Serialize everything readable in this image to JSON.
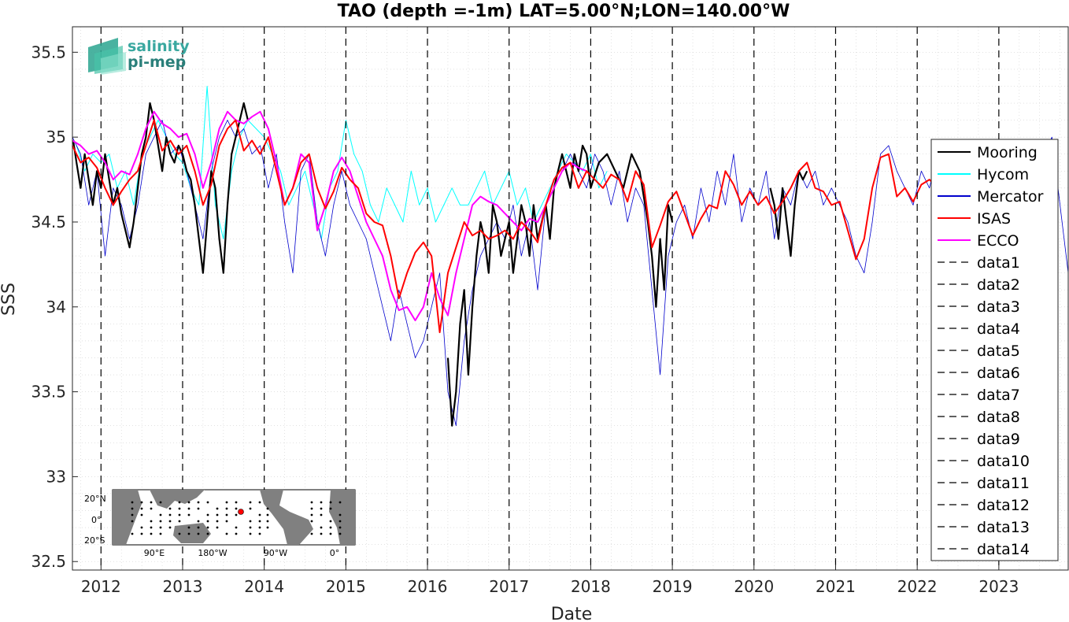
{
  "chart_data": {
    "type": "line",
    "title": "TAO (depth =-1m) LAT=5.00°N;LON=140.00°W",
    "xlabel": "Date",
    "ylabel": "SSS",
    "xlim": [
      2011.65,
      2023.85
    ],
    "ylim": [
      32.45,
      35.65
    ],
    "x_ticks": [
      "2012",
      "2013",
      "2014",
      "2015",
      "2016",
      "2017",
      "2018",
      "2019",
      "2020",
      "2021",
      "2022",
      "2023"
    ],
    "y_ticks": [
      "32.5",
      "33",
      "33.5",
      "34",
      "34.5",
      "35",
      "35.5"
    ],
    "grid": "on (minor dotted)",
    "legend_position": "right",
    "series": [
      {
        "name": "Mooring",
        "color": "#000000",
        "x": [
          2011.66,
          2011.7,
          2011.75,
          2011.8,
          2011.85,
          2011.9,
          2011.95,
          2012.0,
          2012.05,
          2012.1,
          2012.15,
          2012.2,
          2012.25,
          2012.3,
          2012.35,
          2012.4,
          2012.45,
          2012.5,
          2012.55,
          2012.6,
          2012.65,
          2012.7,
          2012.75,
          2012.8,
          2012.85,
          2012.9,
          2012.95,
          2013.0,
          2013.05,
          2013.1,
          2013.15,
          2013.2,
          2013.25,
          2013.3,
          2013.35,
          2013.4,
          2013.45,
          2013.5,
          2013.55,
          2013.6,
          2013.65,
          2013.7,
          2013.75,
          2013.8,
          null,
          2016.25,
          2016.3,
          2016.35,
          2016.4,
          2016.45,
          2016.5,
          2016.55,
          2016.6,
          2016.65,
          2016.7,
          2016.75,
          2016.8,
          2016.85,
          2016.9,
          2016.95,
          2017.0,
          2017.05,
          2017.1,
          2017.15,
          2017.2,
          2017.25,
          2017.3,
          2017.35,
          2017.4,
          2017.45,
          2017.5,
          2017.55,
          2017.6,
          2017.65,
          2017.7,
          2017.75,
          2017.8,
          2017.85,
          2017.9,
          2017.95,
          2018.0,
          2018.1,
          2018.2,
          2018.3,
          2018.4,
          2018.5,
          2018.6,
          2018.7,
          2018.75,
          2018.8,
          2018.85,
          2018.9,
          2018.95,
          2019.0,
          null,
          2020.2,
          2020.25,
          2020.3,
          2020.35,
          2020.4,
          2020.45,
          2020.5,
          2020.55,
          2020.6,
          2020.65
        ],
        "y": [
          34.98,
          34.85,
          34.7,
          34.9,
          34.75,
          34.6,
          34.8,
          34.7,
          34.9,
          34.75,
          34.6,
          34.7,
          34.55,
          34.45,
          34.35,
          34.5,
          34.7,
          34.9,
          35.0,
          35.2,
          35.1,
          34.95,
          34.8,
          35.0,
          34.9,
          34.85,
          34.95,
          34.9,
          34.8,
          34.75,
          34.6,
          34.4,
          34.2,
          34.5,
          34.8,
          34.7,
          34.4,
          34.2,
          34.6,
          34.9,
          35.0,
          35.1,
          35.2,
          35.1,
          null,
          33.7,
          33.3,
          33.5,
          33.9,
          34.1,
          33.6,
          34.0,
          34.3,
          34.5,
          34.4,
          34.2,
          34.6,
          34.5,
          34.3,
          34.4,
          34.5,
          34.2,
          34.4,
          34.6,
          34.5,
          34.3,
          34.6,
          34.4,
          34.5,
          34.6,
          34.4,
          34.7,
          34.8,
          34.9,
          34.8,
          34.7,
          34.9,
          34.8,
          34.95,
          34.9,
          34.7,
          34.85,
          34.9,
          34.8,
          34.7,
          34.9,
          34.8,
          34.5,
          34.3,
          34.0,
          34.4,
          34.1,
          34.6,
          34.5,
          null,
          34.7,
          34.6,
          34.4,
          34.7,
          34.5,
          34.3,
          34.6,
          34.8,
          34.75,
          34.8
        ]
      },
      {
        "name": "Hycom",
        "color": "#00ffff",
        "x": [
          2011.7,
          2011.8,
          2011.9,
          2012.0,
          2012.1,
          2012.2,
          2012.3,
          2012.4,
          2012.5,
          2012.6,
          2012.7,
          2012.8,
          2012.9,
          2013.0,
          2013.1,
          2013.2,
          2013.3,
          2013.4,
          2013.5,
          2013.6,
          2013.7,
          2013.8,
          2013.9,
          2014.0,
          2014.1,
          2014.2,
          2014.3,
          2014.4,
          2014.5,
          2014.6,
          2014.7,
          2014.8,
          2014.9,
          2015.0,
          2015.1,
          2015.2,
          2015.3,
          2015.4,
          2015.5,
          2015.6,
          2015.7,
          2015.8,
          2015.9,
          2016.0,
          2016.1,
          2016.2,
          2016.3,
          2016.4,
          2016.5,
          2016.6,
          2016.7,
          2016.8,
          2016.9,
          2017.0,
          2017.1,
          2017.2,
          2017.3,
          2017.4,
          2017.5,
          2017.6,
          2017.7,
          2017.8,
          2017.9,
          2018.0,
          2018.1,
          2018.2
        ],
        "y": [
          34.95,
          34.8,
          34.9,
          34.85,
          34.9,
          34.7,
          34.8,
          34.6,
          34.9,
          35.0,
          35.1,
          35.0,
          34.9,
          34.85,
          34.7,
          34.6,
          35.3,
          34.6,
          34.4,
          34.8,
          35.0,
          35.1,
          35.05,
          35.0,
          34.9,
          34.8,
          34.6,
          34.7,
          34.8,
          34.6,
          34.4,
          34.7,
          34.8,
          35.1,
          34.9,
          34.8,
          34.6,
          34.5,
          34.7,
          34.6,
          34.5,
          34.8,
          34.6,
          34.7,
          34.5,
          34.6,
          34.7,
          34.6,
          34.6,
          34.7,
          34.8,
          34.6,
          34.7,
          34.8,
          34.6,
          34.7,
          34.5,
          34.6,
          34.7,
          34.8,
          34.9,
          34.85,
          34.8,
          34.9,
          34.7,
          34.8
        ]
      },
      {
        "name": "Mercator",
        "color": "#0000cd",
        "x": [
          2011.65,
          2011.75,
          2011.85,
          2011.95,
          2012.05,
          2012.15,
          2012.25,
          2012.35,
          2012.45,
          2012.55,
          2012.65,
          2012.75,
          2012.85,
          2012.95,
          2013.05,
          2013.15,
          2013.25,
          2013.35,
          2013.45,
          2013.55,
          2013.65,
          2013.75,
          2013.85,
          2013.95,
          2014.05,
          2014.15,
          2014.25,
          2014.35,
          2014.45,
          2014.55,
          2014.65,
          2014.75,
          2014.85,
          2014.95,
          2015.05,
          2015.15,
          2015.25,
          2015.35,
          2015.45,
          2015.55,
          2015.65,
          2015.75,
          2015.85,
          2015.95,
          2016.05,
          2016.15,
          2016.25,
          2016.35,
          2016.45,
          2016.55,
          2016.65,
          2016.75,
          2016.85,
          2016.95,
          2017.05,
          2017.15,
          2017.25,
          2017.35,
          2017.45,
          2017.55,
          2017.65,
          2017.75,
          2017.85,
          2017.95,
          2018.05,
          2018.15,
          2018.25,
          2018.35,
          2018.45,
          2018.55,
          2018.65,
          2018.75,
          2018.85,
          2018.95,
          2019.05,
          2019.15,
          2019.25,
          2019.35,
          2019.45,
          2019.55,
          2019.65,
          2019.75,
          2019.85,
          2019.95,
          2020.05,
          2020.15,
          2020.25,
          2020.35,
          2020.45,
          2020.55,
          2020.65,
          2020.75,
          2020.85,
          2020.95,
          2021.05,
          2021.15,
          2021.25,
          2021.35,
          2021.45,
          2021.55,
          2021.65,
          2021.75,
          2021.85,
          2021.95,
          2022.05,
          2022.15,
          2022.25,
          2022.35,
          2022.45,
          2022.55,
          2022.65,
          2022.75,
          2022.85,
          2022.95,
          2023.05,
          2023.15,
          2023.25,
          2023.35,
          2023.45,
          2023.55,
          2023.65,
          2023.75,
          2023.85
        ],
        "y": [
          35.0,
          34.9,
          34.6,
          34.8,
          34.3,
          34.7,
          34.6,
          34.4,
          34.6,
          34.9,
          35.0,
          35.1,
          34.9,
          34.95,
          34.8,
          34.6,
          34.4,
          34.8,
          35.0,
          35.1,
          35.0,
          35.05,
          34.9,
          34.95,
          34.7,
          34.9,
          34.5,
          34.2,
          34.8,
          34.9,
          34.5,
          34.3,
          34.6,
          34.8,
          34.6,
          34.5,
          34.4,
          34.2,
          34.0,
          33.8,
          34.1,
          33.9,
          33.7,
          33.8,
          34.0,
          34.2,
          33.5,
          33.3,
          33.8,
          34.1,
          34.3,
          34.4,
          34.5,
          34.4,
          34.6,
          34.3,
          34.5,
          34.1,
          34.6,
          34.7,
          34.8,
          34.9,
          34.8,
          34.7,
          34.9,
          34.8,
          34.6,
          34.8,
          34.5,
          34.7,
          34.6,
          34.1,
          33.6,
          34.3,
          34.5,
          34.6,
          34.4,
          34.7,
          34.5,
          34.8,
          34.6,
          34.9,
          34.5,
          34.7,
          34.6,
          34.8,
          34.4,
          34.7,
          34.6,
          34.8,
          34.7,
          34.8,
          34.6,
          34.7,
          34.6,
          34.5,
          34.3,
          34.2,
          34.5,
          34.9,
          34.95,
          34.8,
          34.7,
          34.6,
          34.8,
          34.7,
          34.9,
          34.6,
          34.8,
          34.7,
          34.9,
          34.6,
          34.7,
          34.8,
          34.6,
          34.75,
          34.7,
          34.65,
          34.8,
          34.9,
          35.0,
          34.6,
          34.2
        ]
      },
      {
        "name": "ISAS",
        "color": "#ff0000",
        "x": [
          2011.65,
          2011.75,
          2011.85,
          2011.95,
          2012.05,
          2012.15,
          2012.25,
          2012.35,
          2012.45,
          2012.55,
          2012.65,
          2012.75,
          2012.85,
          2012.95,
          2013.05,
          2013.15,
          2013.25,
          2013.35,
          2013.45,
          2013.55,
          2013.65,
          2013.75,
          2013.85,
          2013.95,
          2014.05,
          2014.15,
          2014.25,
          2014.35,
          2014.45,
          2014.55,
          2014.65,
          2014.75,
          2014.85,
          2014.95,
          2015.05,
          2015.15,
          2015.25,
          2015.35,
          2015.45,
          2015.55,
          2015.65,
          2015.75,
          2015.85,
          2015.95,
          2016.05,
          2016.15,
          2016.25,
          2016.35,
          2016.45,
          2016.55,
          2016.65,
          2016.75,
          2016.85,
          2016.95,
          2017.05,
          2017.15,
          2017.25,
          2017.35,
          2017.45,
          2017.55,
          2017.65,
          2017.75,
          2017.85,
          2017.95,
          2018.05,
          2018.15,
          2018.25,
          2018.35,
          2018.45,
          2018.55,
          2018.65,
          2018.75,
          2018.85,
          2018.95,
          2019.05,
          2019.15,
          2019.25,
          2019.35,
          2019.45,
          2019.55,
          2019.65,
          2019.75,
          2019.85,
          2019.95,
          2020.05,
          2020.15,
          2020.25,
          2020.35,
          2020.45,
          2020.55,
          2020.65,
          2020.75,
          2020.85,
          2020.95,
          2021.05,
          2021.15,
          2021.25,
          2021.35,
          2021.45,
          2021.55,
          2021.65,
          2021.75,
          2021.85,
          2021.95,
          2022.05,
          2022.15,
          2022.25
        ],
        "y": [
          34.95,
          34.85,
          34.88,
          34.82,
          34.7,
          34.6,
          34.68,
          34.75,
          34.8,
          34.95,
          35.1,
          34.92,
          34.98,
          34.9,
          34.95,
          34.8,
          34.6,
          34.72,
          34.95,
          35.05,
          35.1,
          34.92,
          34.98,
          34.9,
          35.0,
          34.8,
          34.6,
          34.7,
          34.85,
          34.9,
          34.7,
          34.58,
          34.68,
          34.82,
          34.75,
          34.7,
          34.55,
          34.5,
          34.48,
          34.3,
          34.05,
          34.2,
          34.32,
          34.38,
          34.3,
          33.85,
          34.2,
          34.35,
          34.5,
          34.42,
          34.45,
          34.4,
          34.42,
          34.45,
          34.4,
          34.5,
          34.45,
          34.38,
          34.6,
          34.75,
          34.82,
          34.85,
          34.7,
          34.8,
          34.75,
          34.7,
          34.78,
          34.75,
          34.62,
          34.8,
          34.72,
          34.35,
          34.48,
          34.62,
          34.68,
          34.55,
          34.42,
          34.52,
          34.6,
          34.58,
          34.8,
          34.72,
          34.6,
          34.68,
          34.6,
          34.65,
          34.55,
          34.62,
          34.7,
          34.8,
          34.85,
          34.7,
          34.68,
          34.6,
          34.62,
          34.45,
          34.28,
          34.4,
          34.7,
          34.88,
          34.9,
          34.65,
          34.7,
          34.62,
          34.72,
          34.75,
          34.7
        ]
      },
      {
        "name": "ECCO",
        "color": "#ff00ff",
        "x": [
          2011.65,
          2011.75,
          2011.85,
          2011.95,
          2012.05,
          2012.15,
          2012.25,
          2012.35,
          2012.45,
          2012.55,
          2012.65,
          2012.75,
          2012.85,
          2012.95,
          2013.05,
          2013.15,
          2013.25,
          2013.35,
          2013.45,
          2013.55,
          2013.65,
          2013.75,
          2013.85,
          2013.95,
          2014.05,
          2014.15,
          2014.25,
          2014.35,
          2014.45,
          2014.55,
          2014.65,
          2014.75,
          2014.85,
          2014.95,
          2015.05,
          2015.15,
          2015.25,
          2015.35,
          2015.45,
          2015.55,
          2015.65,
          2015.75,
          2015.85,
          2015.95,
          2016.05,
          2016.15,
          2016.25,
          2016.35,
          2016.45,
          2016.55,
          2016.65,
          2016.75,
          2016.85,
          2016.95,
          2017.05,
          2017.15,
          2017.25,
          2017.35,
          2017.45,
          2017.55,
          2017.65,
          2017.75,
          2017.85,
          2017.95
        ],
        "y": [
          34.98,
          34.95,
          34.9,
          34.92,
          34.85,
          34.75,
          34.8,
          34.78,
          34.9,
          35.05,
          35.15,
          35.08,
          35.05,
          35.0,
          35.02,
          34.9,
          34.7,
          34.85,
          35.05,
          35.15,
          35.1,
          35.08,
          35.12,
          35.15,
          35.05,
          34.85,
          34.6,
          34.7,
          34.9,
          34.85,
          34.45,
          34.6,
          34.8,
          34.88,
          34.8,
          34.65,
          34.5,
          34.4,
          34.3,
          34.1,
          33.98,
          34.0,
          33.92,
          34.0,
          34.2,
          34.05,
          33.95,
          34.2,
          34.4,
          34.6,
          34.65,
          34.62,
          34.6,
          34.55,
          34.5,
          34.45,
          34.52,
          34.5,
          34.6,
          34.7,
          34.8,
          34.85,
          34.82,
          34.8
        ]
      }
    ],
    "event_lines": [
      {
        "name": "data1",
        "x": 2012.0
      },
      {
        "name": "data2",
        "x": 2013.0
      },
      {
        "name": "data3",
        "x": 2014.0
      },
      {
        "name": "data4",
        "x": 2015.0
      },
      {
        "name": "data5",
        "x": 2016.0
      },
      {
        "name": "data6",
        "x": 2017.0
      },
      {
        "name": "data7",
        "x": 2018.0
      },
      {
        "name": "data8",
        "x": 2019.0
      },
      {
        "name": "data9",
        "x": 2020.0
      },
      {
        "name": "data10",
        "x": 2021.0
      },
      {
        "name": "data11",
        "x": 2022.0
      },
      {
        "name": "data12",
        "x": 2023.0
      },
      {
        "name": "data13",
        "x": 2023.85
      },
      {
        "name": "data14",
        "x": 2011.65
      }
    ]
  },
  "logo": {
    "line1": "salinity",
    "line2": "pi-mep"
  },
  "inset_map": {
    "lat_labels": [
      "20°N",
      "0°",
      "20°S"
    ],
    "lon_labels": [
      "90°E",
      "180°W",
      "90°W",
      "0°"
    ],
    "land_color": "#808080",
    "marker_color": "#ff0000"
  }
}
